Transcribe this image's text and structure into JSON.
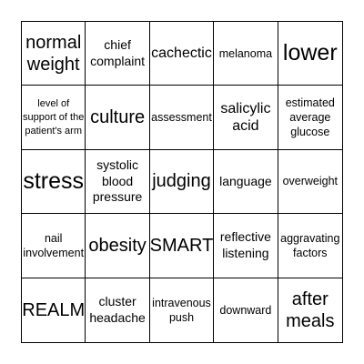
{
  "board": {
    "cells": [
      [
        "normal weight",
        "chief complaint",
        "cachectic",
        "melanoma",
        "lower"
      ],
      [
        "level of support of the patient's arm",
        "culture",
        "assessment",
        "salicylic acid",
        "estimated average glucose"
      ],
      [
        "stress",
        "systolic blood pressure",
        "judging",
        "language",
        "overweight"
      ],
      [
        "nail involvement",
        "obesity",
        "SMART",
        "reflective listening",
        "aggravating factors"
      ],
      [
        "REALM",
        "cluster headache",
        "intravenous push",
        "downward",
        "after meals"
      ]
    ]
  }
}
